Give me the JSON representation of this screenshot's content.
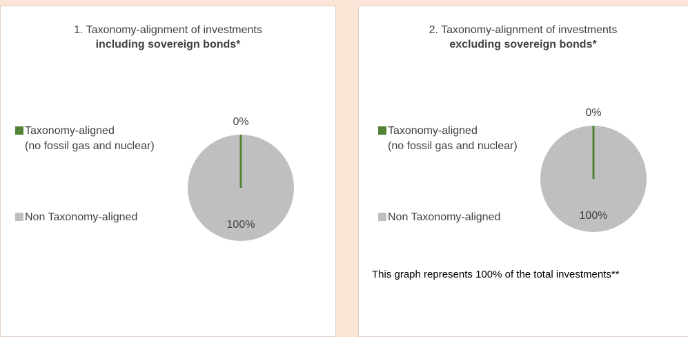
{
  "chart_data": [
    {
      "type": "pie",
      "title": "1. Taxonomy-alignment of investments",
      "subtitle": "including sovereign bonds*",
      "categories": [
        "Taxonomy-aligned\n(no fossil gas and nuclear)",
        "Non Taxonomy-aligned"
      ],
      "values": [
        0,
        100
      ],
      "value_labels": [
        "0%",
        "100%"
      ],
      "colors": [
        "#548235",
        "#bfbfbf"
      ],
      "legend": "left"
    },
    {
      "type": "pie",
      "title": "2. Taxonomy-alignment of investments",
      "subtitle": "excluding sovereign bonds*",
      "categories": [
        "Taxonomy-aligned\n(no fossil gas and nuclear)",
        "Non Taxonomy-aligned"
      ],
      "values": [
        0,
        100
      ],
      "value_labels": [
        "0%",
        "100%"
      ],
      "colors": [
        "#548235",
        "#bfbfbf"
      ],
      "legend": "left",
      "annotation": "This graph represents 100% of the total investments**"
    }
  ]
}
